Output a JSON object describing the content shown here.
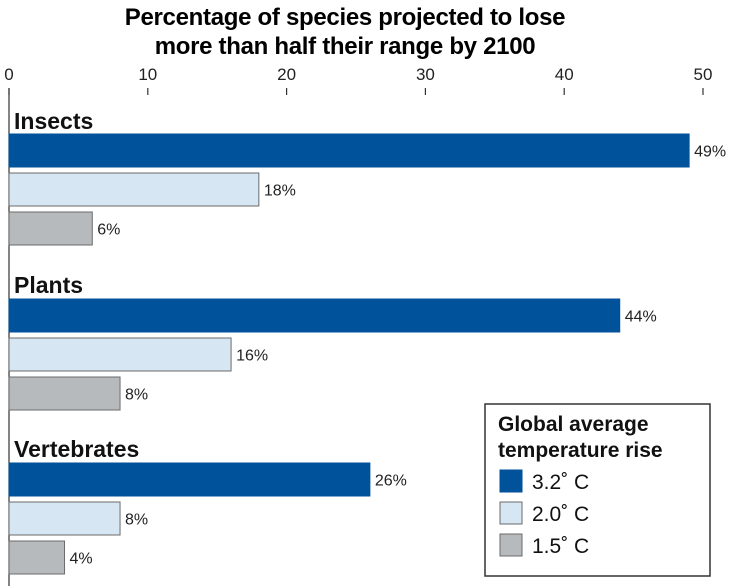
{
  "chart_data": {
    "type": "bar",
    "orientation": "horizontal",
    "title_lines": [
      "Percentage of species projected to lose",
      "more than half their range by 2100"
    ],
    "categories": [
      "Insects",
      "Plants",
      "Vertebrates"
    ],
    "series": [
      {
        "name": "3.2˚ C",
        "color": "#00529b",
        "values": [
          49,
          44,
          26
        ],
        "labels": [
          "49%",
          "44%",
          "26%"
        ]
      },
      {
        "name": "2.0˚ C",
        "color": "#d6e6f2",
        "values": [
          18,
          16,
          8
        ],
        "labels": [
          "18%",
          "16%",
          "8%"
        ]
      },
      {
        "name": "1.5˚ C",
        "color": "#b7babd",
        "values": [
          6,
          8,
          4
        ],
        "labels": [
          "6%",
          "8%",
          "4%"
        ]
      }
    ],
    "xlim": [
      0,
      50
    ],
    "xticks": [
      0,
      10,
      20,
      30,
      40,
      50
    ],
    "grid": false,
    "legend": {
      "title_lines": [
        "Global average",
        "temperature rise"
      ],
      "placement": "bottom-right"
    }
  }
}
